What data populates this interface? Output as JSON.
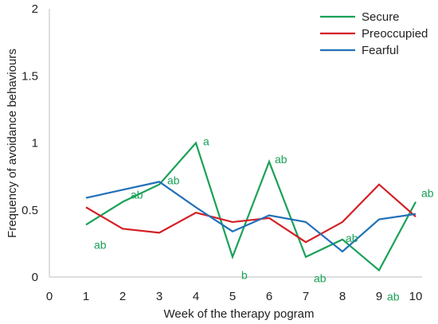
{
  "chart_data": {
    "type": "line",
    "xlabel": "Week of the therapy pogram",
    "ylabel": "Frequency of avoidance behaviours",
    "xlim": [
      0,
      10
    ],
    "ylim": [
      0,
      2
    ],
    "x_ticks": [
      "0",
      "1",
      "2",
      "3",
      "4",
      "5",
      "6",
      "7",
      "8",
      "9",
      "10"
    ],
    "y_ticks": [
      {
        "value": 0,
        "label": "0"
      },
      {
        "value": 0.5,
        "label": "0.5"
      },
      {
        "value": 1,
        "label": "1"
      },
      {
        "value": 1.5,
        "label": "1.5"
      },
      {
        "value": 2,
        "label": "2"
      }
    ],
    "grid": false,
    "legend_position": "top-right",
    "x": [
      1,
      2,
      3,
      4,
      5,
      6,
      7,
      8,
      9,
      10
    ],
    "series": [
      {
        "name": "Secure",
        "color": "#1aa158",
        "values": [
          0.39,
          0.56,
          0.69,
          1.0,
          0.15,
          0.86,
          0.15,
          0.28,
          0.05,
          0.56
        ]
      },
      {
        "name": "Preoccupied",
        "color": "#d41f26",
        "values": [
          0.52,
          0.36,
          0.33,
          0.48,
          0.41,
          0.44,
          0.26,
          0.41,
          0.69,
          0.45
        ]
      },
      {
        "name": "Fearful",
        "color": "#2170b8",
        "values": [
          0.59,
          0.65,
          0.71,
          0.52,
          0.34,
          0.46,
          0.41,
          0.19,
          0.43,
          0.47
        ]
      }
    ],
    "annotations": [
      {
        "x": 1,
        "y": 0.39,
        "text": "ab",
        "color": "#1aa158"
      },
      {
        "x": 2,
        "y": 0.56,
        "text": "ab",
        "color": "#1aa158"
      },
      {
        "x": 3,
        "y": 0.69,
        "text": "ab",
        "color": "#1aa158"
      },
      {
        "x": 4,
        "y": 1.0,
        "text": "a",
        "color": "#1aa158"
      },
      {
        "x": 5,
        "y": 0.15,
        "text": "b",
        "color": "#1aa158"
      },
      {
        "x": 6,
        "y": 0.86,
        "text": "ab",
        "color": "#1aa158"
      },
      {
        "x": 7,
        "y": 0.15,
        "text": "ab",
        "color": "#1aa158"
      },
      {
        "x": 8,
        "y": 0.28,
        "text": "ab",
        "color": "#1aa158"
      },
      {
        "x": 9,
        "y": 0.05,
        "text": "ab",
        "color": "#1aa158"
      },
      {
        "x": 10,
        "y": 0.56,
        "text": "ab",
        "color": "#1aa158"
      }
    ]
  }
}
